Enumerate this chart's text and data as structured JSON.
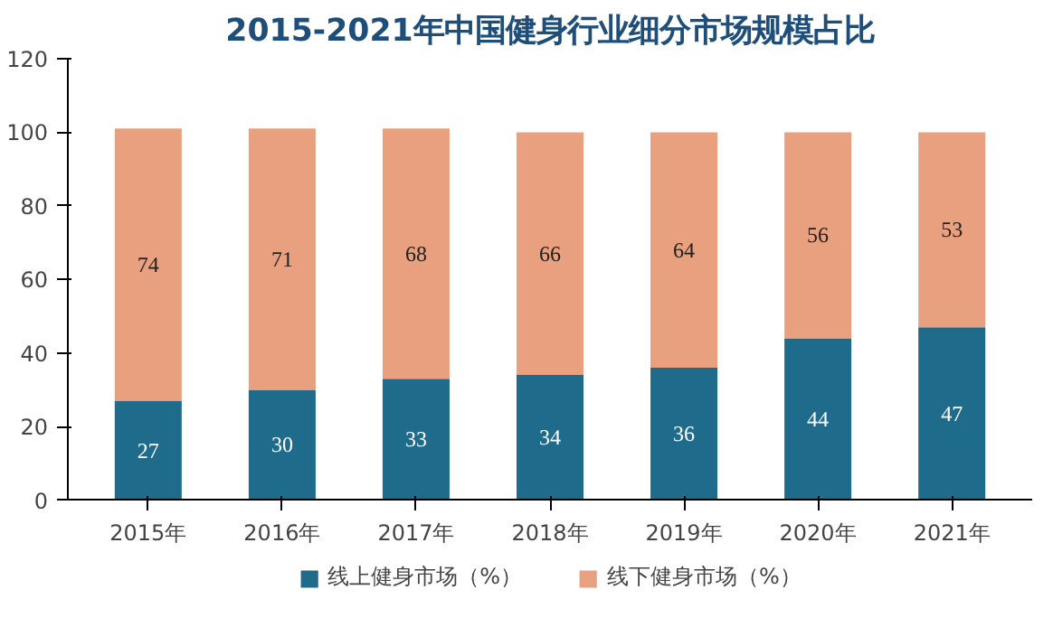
{
  "chart_data": {
    "type": "bar",
    "title": "2015-2021年中国健身行业细分市场规模占比",
    "categories": [
      "2015年",
      "2016年",
      "2017年",
      "2018年",
      "2019年",
      "2020年",
      "2021年"
    ],
    "stacked": true,
    "series": [
      {
        "name": "线上健身市场（%）",
        "color": "#1f6b8c",
        "values": [
          27,
          30,
          33,
          34,
          36,
          44,
          47
        ]
      },
      {
        "name": "线下健身市场（%）",
        "color": "#e9a07f",
        "values": [
          74,
          71,
          68,
          66,
          64,
          56,
          53
        ]
      }
    ],
    "ylim": [
      0,
      120
    ],
    "yticks": [
      0,
      20,
      40,
      60,
      80,
      100,
      120
    ],
    "data_labels": true,
    "legend": "bottom",
    "grid": false
  }
}
